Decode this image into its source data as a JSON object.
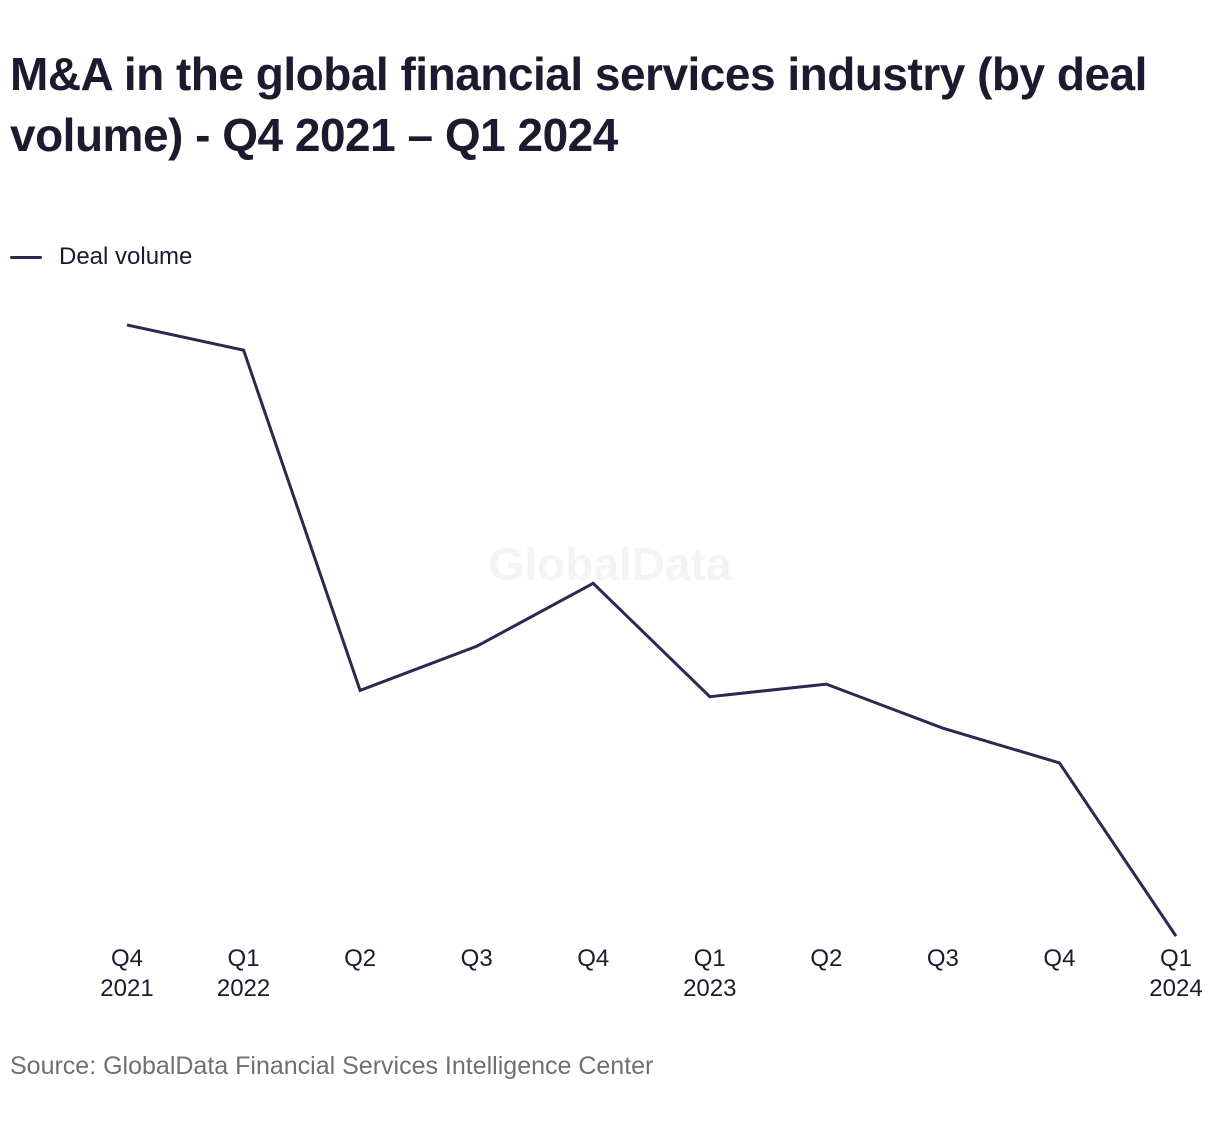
{
  "title": "M&A in the global financial services industry (by deal volume) - Q4 2021 – Q1 2024",
  "watermark": "GlobalData",
  "source": "Source: GlobalData Financial Services Intelligence Center",
  "colors": {
    "series_line": "#33254f",
    "text": "#1b1a2e",
    "source_text": "#707070"
  },
  "chart_data": {
    "type": "line",
    "x_tick_labels": [
      [
        "Q4",
        "2021"
      ],
      [
        "Q1",
        "2022"
      ],
      [
        "Q2"
      ],
      [
        "Q3"
      ],
      [
        "Q4"
      ],
      [
        "Q1",
        "2023"
      ],
      [
        "Q2"
      ],
      [
        "Q3"
      ],
      [
        "Q4"
      ],
      [
        "Q1",
        "2024"
      ]
    ],
    "categories": [
      "Q4 2021",
      "Q1 2022",
      "Q2 2022",
      "Q3 2022",
      "Q4 2022",
      "Q1 2023",
      "Q2 2023",
      "Q3 2023",
      "Q4 2023",
      "Q1 2024"
    ],
    "series": [
      {
        "name": "Deal volume",
        "values": [
          100,
          96,
          42,
          49,
          59,
          41,
          43,
          36,
          30.5,
          3
        ]
      }
    ],
    "ylim": [
      0,
      100
    ],
    "y_axis_shown": false,
    "grid": false,
    "legend": "top-left"
  }
}
